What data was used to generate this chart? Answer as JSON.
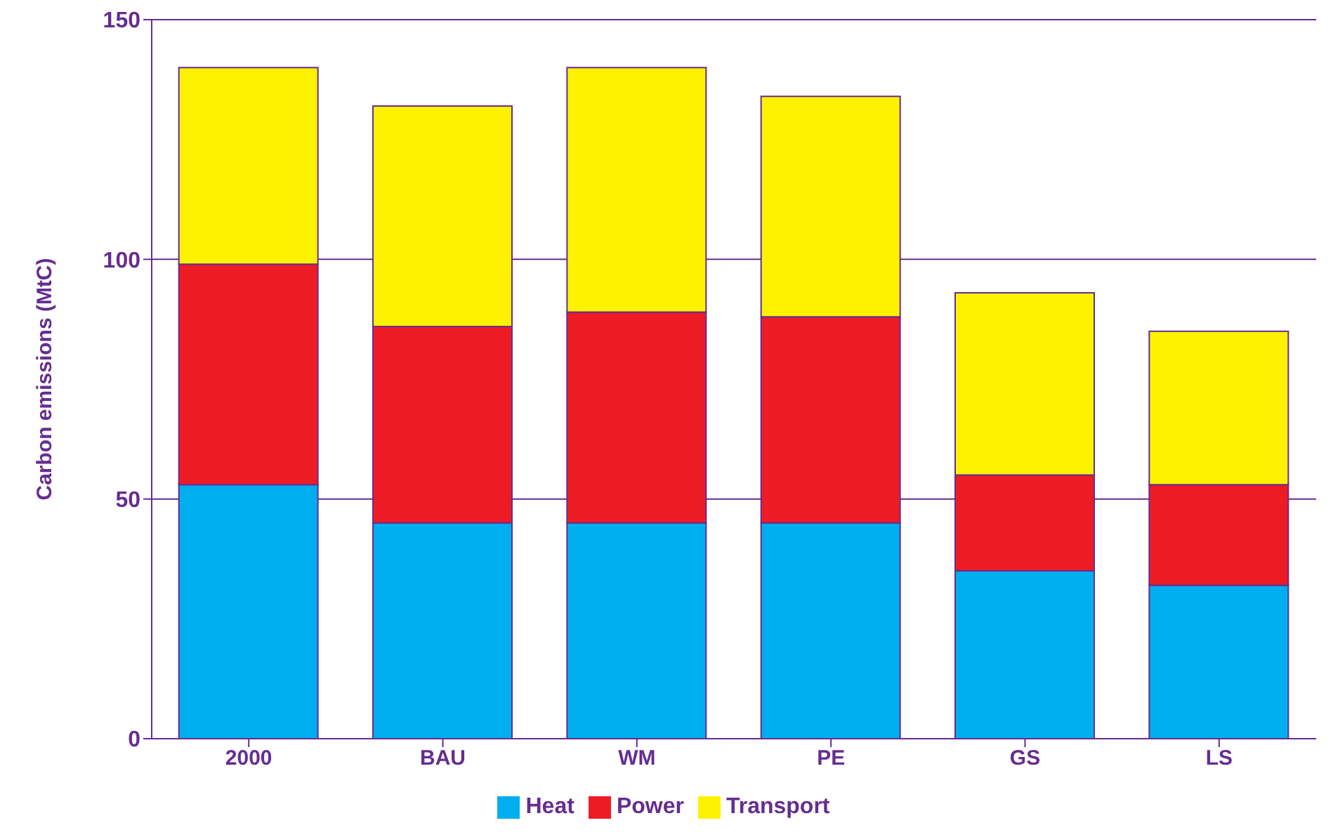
{
  "chart_data": {
    "type": "bar",
    "stacked": true,
    "ylabel": "Carbon emissions (MtC)",
    "categories": [
      "2000",
      "BAU",
      "WM",
      "PE",
      "GS",
      "LS"
    ],
    "series": [
      {
        "name": "Heat",
        "color": "#00aeef",
        "values": [
          53,
          45,
          45,
          45,
          35,
          32
        ]
      },
      {
        "name": "Power",
        "color": "#ed1c24",
        "values": [
          46,
          41,
          44,
          43,
          20,
          21
        ]
      },
      {
        "name": "Transport",
        "color": "#fff200",
        "values": [
          41,
          46,
          51,
          46,
          38,
          32
        ]
      }
    ],
    "ylim": [
      0,
      150
    ],
    "yticks": [
      0,
      50,
      100,
      150
    ],
    "grid": "y",
    "legend": "bottom"
  }
}
